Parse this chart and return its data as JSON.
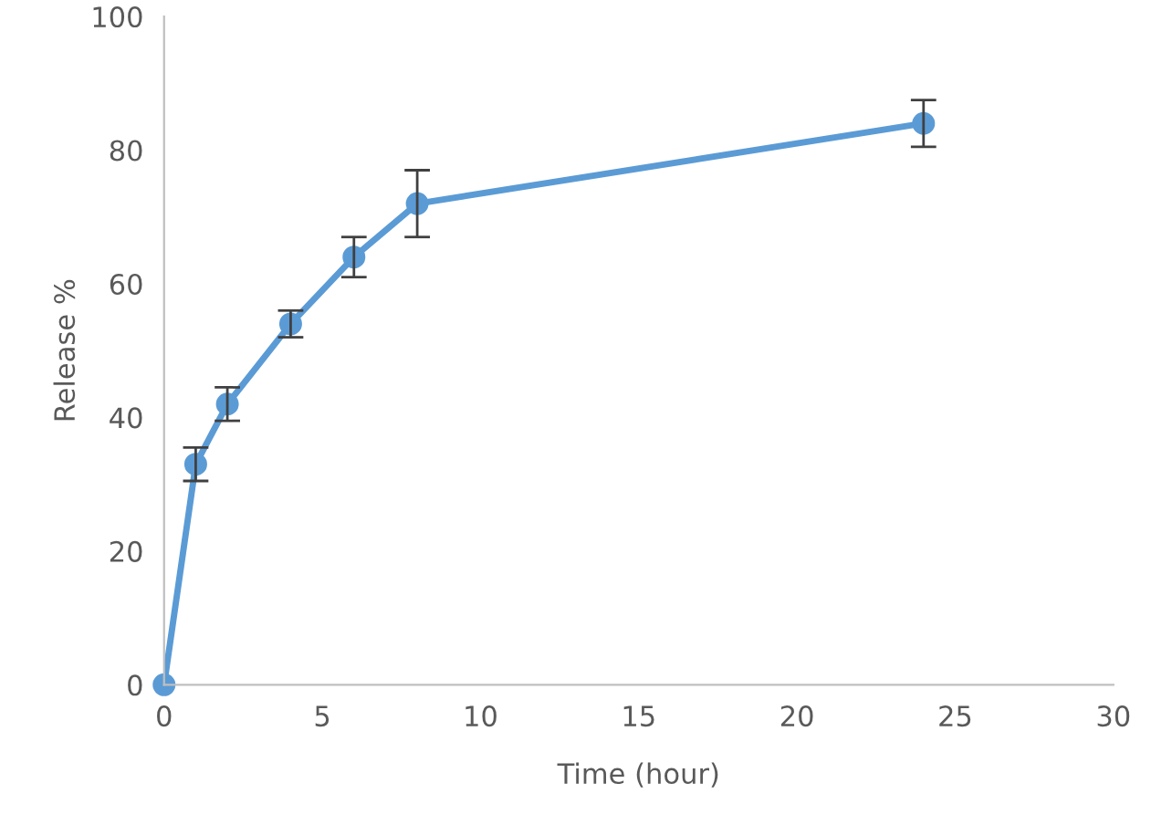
{
  "chart_data": {
    "type": "line",
    "xlabel": "Time (hour)",
    "ylabel": "Release %",
    "x": [
      0,
      1,
      2,
      4,
      6,
      8,
      24
    ],
    "series": [
      {
        "color": "#5b9bd5",
        "values": [
          0,
          33,
          42,
          54,
          64,
          72,
          84
        ],
        "errors": [
          null,
          2.5,
          2.5,
          2,
          3,
          5,
          3.5
        ]
      }
    ],
    "xlim": [
      0,
      30
    ],
    "xticks": [
      0,
      5,
      10,
      15,
      20,
      25,
      30
    ],
    "ylim": [
      0,
      100
    ],
    "yticks": [
      0,
      20,
      40,
      60,
      80,
      100
    ],
    "grid": false,
    "legend": false,
    "marker": "circle",
    "line_style": "solid"
  }
}
